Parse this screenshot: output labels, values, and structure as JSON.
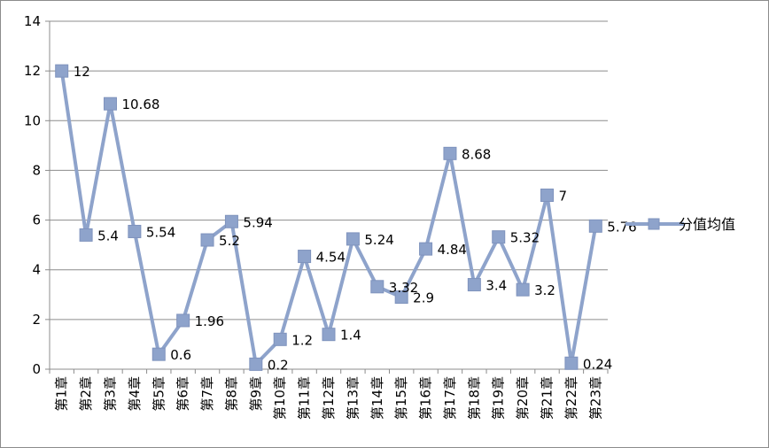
{
  "chart_data": {
    "type": "line",
    "title": "",
    "xlabel": "",
    "ylabel": "",
    "ylim": [
      0,
      14
    ],
    "y_ticks": [
      0,
      2,
      4,
      6,
      8,
      10,
      12,
      14
    ],
    "grid": true,
    "legend_position": "right",
    "categories": [
      "第1章",
      "第2章",
      "第3章",
      "第4章",
      "第5章",
      "第6章",
      "第7章",
      "第8章",
      "第9章",
      "第10章",
      "第11章",
      "第12章",
      "第13章",
      "第14章",
      "第15章",
      "第16章",
      "第17章",
      "第18章",
      "第19章",
      "第20章",
      "第21章",
      "第22章",
      "第23章"
    ],
    "series": [
      {
        "name": "分值均值",
        "color": "#8EA3CB",
        "marker": "square",
        "values": [
          12,
          5.4,
          10.68,
          5.54,
          0.6,
          1.96,
          5.2,
          5.94,
          0.2,
          1.2,
          4.54,
          1.4,
          5.24,
          3.32,
          2.9,
          4.84,
          8.68,
          3.4,
          5.32,
          3.2,
          7,
          0.24,
          5.76
        ]
      }
    ]
  }
}
